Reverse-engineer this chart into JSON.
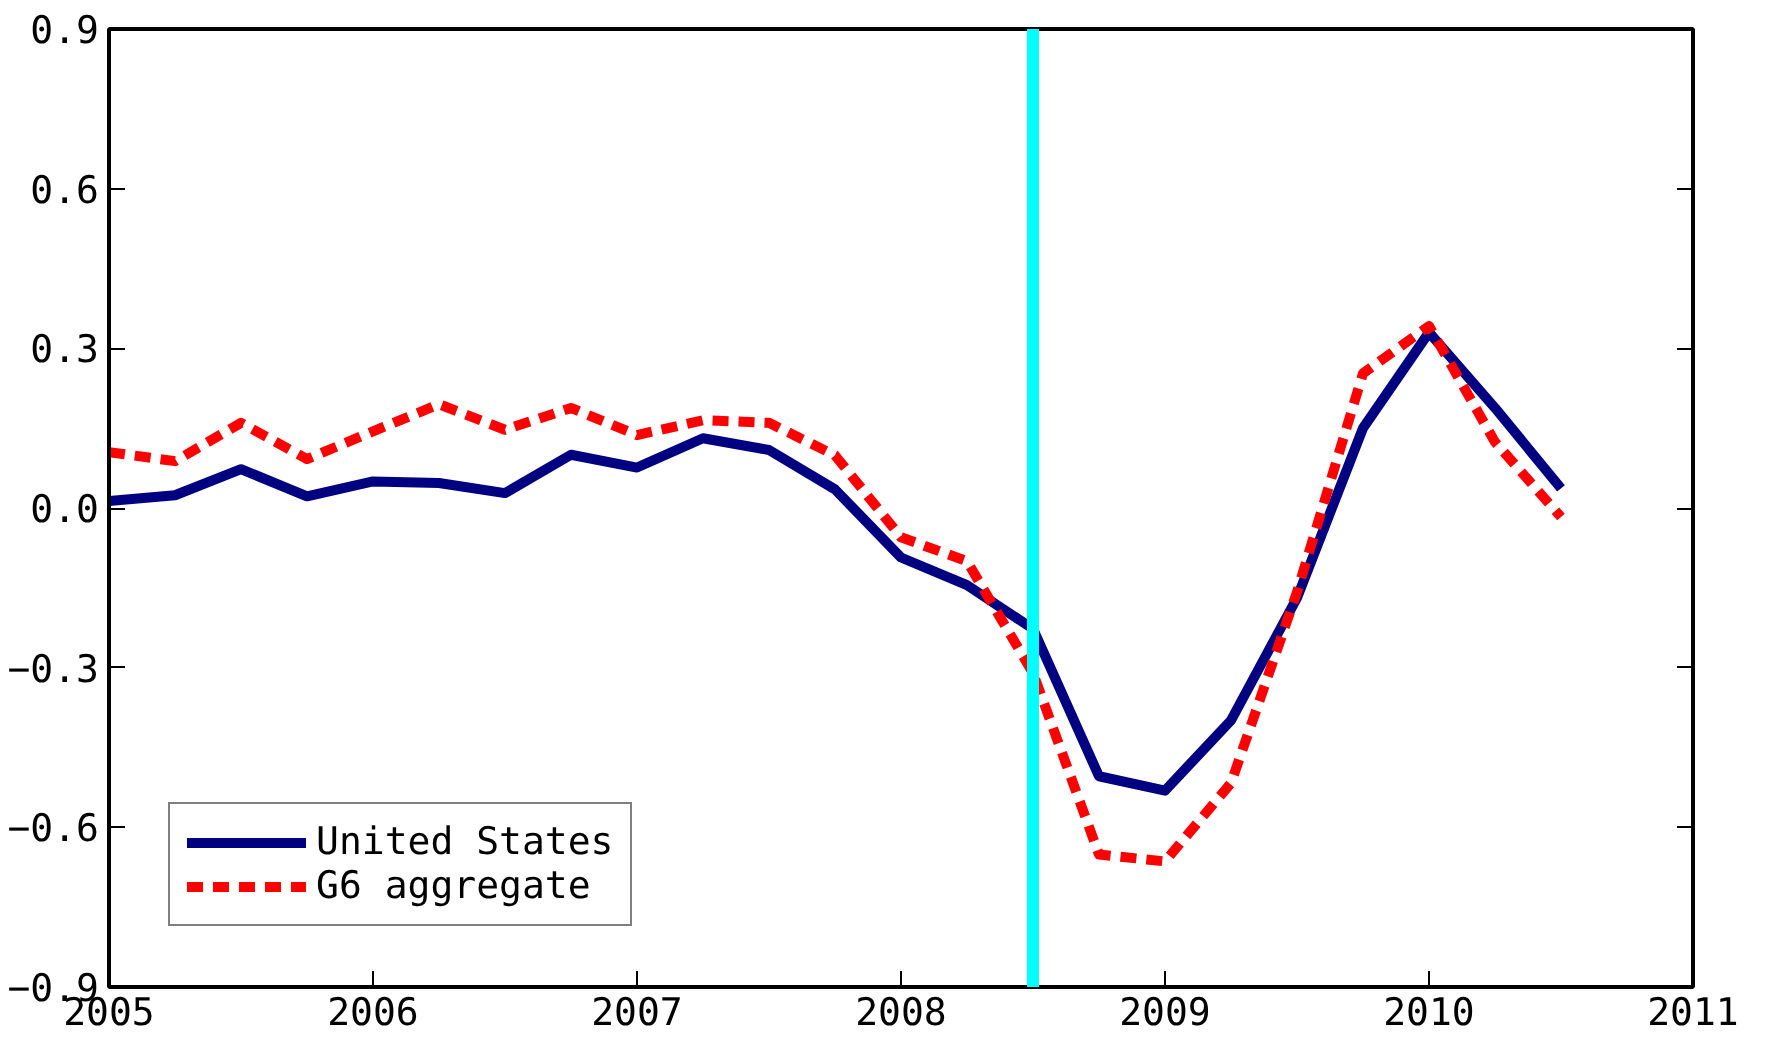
{
  "chart_data": {
    "type": "line",
    "x": [
      2005.0,
      2005.25,
      2005.5,
      2005.75,
      2006.0,
      2006.25,
      2006.5,
      2006.75,
      2007.0,
      2007.25,
      2007.5,
      2007.75,
      2008.0,
      2008.25,
      2008.5,
      2008.75,
      2009.0,
      2009.25,
      2009.5,
      2009.75,
      2010.0,
      2010.25,
      2010.5
    ],
    "series": [
      {
        "name": "United States",
        "color": "#000080",
        "line_style": "solid",
        "values": [
          0.013,
          0.024,
          0.073,
          0.022,
          0.05,
          0.047,
          0.028,
          0.1,
          0.076,
          0.131,
          0.109,
          0.035,
          -0.093,
          -0.145,
          -0.227,
          -0.504,
          -0.531,
          -0.399,
          -0.169,
          0.15,
          0.33,
          0.188,
          0.037
        ]
      },
      {
        "name": "G6 aggregate",
        "color": "#ff0000",
        "line_style": "dashed",
        "values": [
          0.105,
          0.088,
          0.16,
          0.092,
          0.144,
          0.195,
          0.147,
          0.188,
          0.137,
          0.165,
          0.16,
          0.099,
          -0.055,
          -0.1,
          -0.31,
          -0.651,
          -0.664,
          -0.517,
          -0.158,
          0.253,
          0.342,
          0.124,
          -0.017
        ]
      }
    ],
    "xlim": [
      2005,
      2011
    ],
    "xticks": [
      2005,
      2006,
      2007,
      2008,
      2009,
      2010,
      2011
    ],
    "ylim": [
      -0.9,
      0.9
    ],
    "yticks": [
      {
        "value": -0.9,
        "label": "−0.9"
      },
      {
        "value": -0.6,
        "label": "−0.6"
      },
      {
        "value": -0.3,
        "label": "−0.3"
      },
      {
        "value": 0,
        "label": "0.0"
      },
      {
        "value": 0.3,
        "label": "0.3"
      },
      {
        "value": 0.6,
        "label": "0.6"
      },
      {
        "value": 0.9,
        "label": "0.9"
      }
    ],
    "ref_lines": [
      {
        "axis": "x",
        "value": 2008.5,
        "color": "#00ffff"
      }
    ],
    "grid": false,
    "legend": "bottom left",
    "marker": "none"
  }
}
